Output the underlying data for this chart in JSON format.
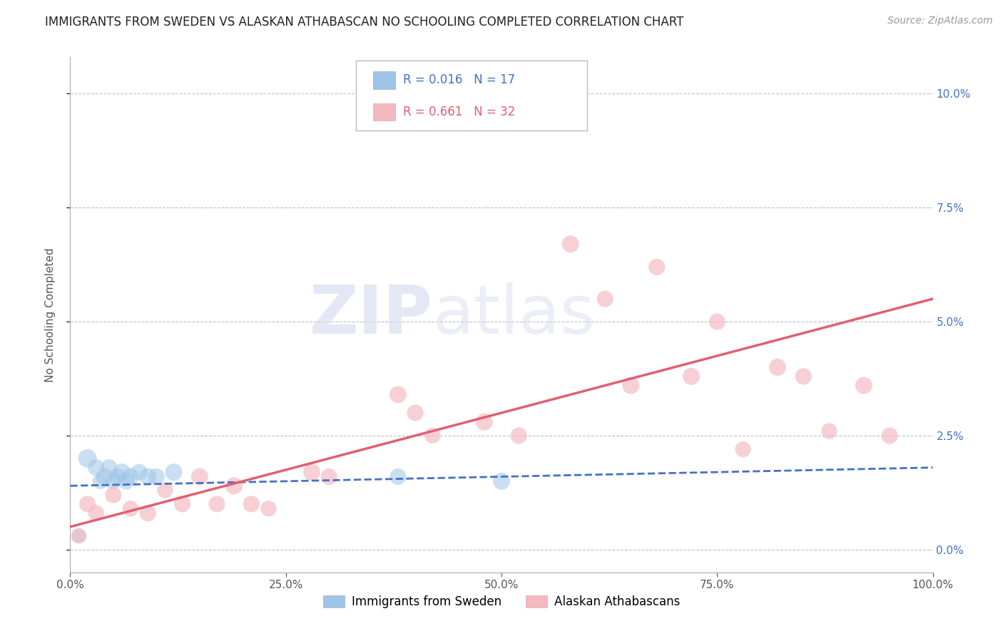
{
  "title": "IMMIGRANTS FROM SWEDEN VS ALASKAN ATHABASCAN NO SCHOOLING COMPLETED CORRELATION CHART",
  "source": "Source: ZipAtlas.com",
  "ylabel": "No Schooling Completed",
  "xlim": [
    0.0,
    1.0
  ],
  "ylim": [
    -0.005,
    0.108
  ],
  "yticks": [
    0.0,
    0.025,
    0.05,
    0.075,
    0.1
  ],
  "ytick_labels": [
    "0.0%",
    "2.5%",
    "5.0%",
    "7.5%",
    "10.0%"
  ],
  "xticks": [
    0.0,
    0.25,
    0.5,
    0.75,
    1.0
  ],
  "xtick_labels": [
    "0.0%",
    "25.0%",
    "50.0%",
    "75.0%",
    "100.0%"
  ],
  "legend_entries": [
    {
      "label": "Immigrants from Sweden",
      "color": "#6fa8dc",
      "R": "0.016",
      "N": "17"
    },
    {
      "label": "Alaskan Athabascans",
      "color": "#ea9999",
      "R": "0.661",
      "N": "32"
    }
  ],
  "blue_scatter_x": [
    0.01,
    0.02,
    0.03,
    0.035,
    0.04,
    0.045,
    0.05,
    0.055,
    0.06,
    0.065,
    0.07,
    0.08,
    0.09,
    0.1,
    0.12,
    0.38,
    0.5
  ],
  "blue_scatter_y": [
    0.003,
    0.02,
    0.018,
    0.015,
    0.016,
    0.018,
    0.015,
    0.016,
    0.017,
    0.015,
    0.016,
    0.017,
    0.016,
    0.016,
    0.017,
    0.016,
    0.015
  ],
  "blue_scatter_size": [
    200,
    350,
    280,
    250,
    300,
    280,
    260,
    280,
    300,
    280,
    300,
    280,
    300,
    280,
    300,
    280,
    300
  ],
  "pink_scatter_x": [
    0.01,
    0.02,
    0.03,
    0.05,
    0.07,
    0.09,
    0.11,
    0.13,
    0.15,
    0.17,
    0.19,
    0.21,
    0.23,
    0.28,
    0.3,
    0.38,
    0.4,
    0.42,
    0.48,
    0.52,
    0.58,
    0.62,
    0.65,
    0.68,
    0.72,
    0.75,
    0.78,
    0.82,
    0.85,
    0.88,
    0.92,
    0.95
  ],
  "pink_scatter_y": [
    0.003,
    0.01,
    0.008,
    0.012,
    0.009,
    0.008,
    0.013,
    0.01,
    0.016,
    0.01,
    0.014,
    0.01,
    0.009,
    0.017,
    0.016,
    0.034,
    0.03,
    0.025,
    0.028,
    0.025,
    0.067,
    0.055,
    0.036,
    0.062,
    0.038,
    0.05,
    0.022,
    0.04,
    0.038,
    0.026,
    0.036,
    0.025
  ],
  "pink_scatter_size": [
    250,
    280,
    260,
    280,
    260,
    280,
    260,
    280,
    300,
    280,
    300,
    280,
    260,
    300,
    280,
    300,
    280,
    260,
    300,
    280,
    300,
    280,
    300,
    280,
    300,
    280,
    260,
    300,
    280,
    260,
    300,
    280
  ],
  "blue_line_x": [
    0.0,
    1.0
  ],
  "blue_line_y": [
    0.014,
    0.018
  ],
  "pink_line_x": [
    0.0,
    1.0
  ],
  "pink_line_y": [
    0.005,
    0.055
  ],
  "blue_color": "#4472c4",
  "pink_color": "#e06070",
  "scatter_blue_color": "#9fc5e8",
  "scatter_pink_color": "#f4b8c1",
  "background_color": "#ffffff",
  "grid_color": "#c0c0c0",
  "title_fontsize": 12,
  "axis_label_fontsize": 11,
  "tick_fontsize": 11
}
